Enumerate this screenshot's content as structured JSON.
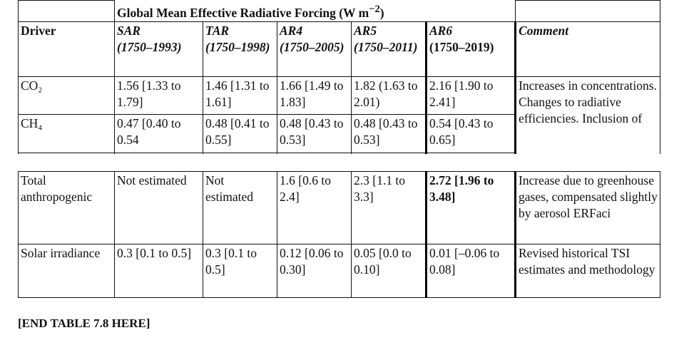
{
  "header": {
    "title": "Global Mean Effective Radiative Forcing (W m",
    "unit_exponent": "−2",
    "title_end": ")"
  },
  "columns": [
    {
      "name": "Driver"
    },
    {
      "name": "SAR",
      "period": "(1750–1993)"
    },
    {
      "name": "TAR",
      "period": "(1750–1998)"
    },
    {
      "name": "AR4",
      "period": "(1750–2005)"
    },
    {
      "name": "AR5",
      "period": "(1750–2011)"
    },
    {
      "name": "AR6",
      "period": "(1750–2019)"
    },
    {
      "name": "Comment"
    }
  ],
  "rows_top": [
    {
      "driver": "CO₂",
      "values": [
        "1.56 [1.33 to 1.79]",
        "1.46 [1.31 to 1.61]",
        "1.66 [1.49 to 1.83]",
        "1.82 (1.63 to 2.01)",
        "2.16 [1.90 to 2.41]"
      ]
    },
    {
      "driver": "CH₄",
      "values": [
        "0.47 [0.40 to 0.54",
        "0.48 [0.41 to 0.55]",
        "0.48 [0.43 to 0.53]",
        "0.48 [0.43 to 0.53]",
        "0.54 [0.43 to 0.65]"
      ]
    }
  ],
  "comment_top": "Increases in concentrations. Changes to radiative efficiencies. Inclusion of",
  "rows_bottom": [
    {
      "driver": "Total anthropogenic",
      "values": [
        "Not estimated",
        "Not estimated",
        "1.6 [0.6 to 2.4]",
        "2.3 [1.1 to 3.3]",
        "2.72 [1.96 to 3.48]"
      ],
      "comment": "Increase due to greenhouse gases, compensated slightly by aerosol ERFaci"
    },
    {
      "driver": "Solar irradiance",
      "values": [
        "0.3 [0.1 to 0.5]",
        "0.3 [0.1 to 0.5]",
        "0.12 [0.06 to 0.30]",
        "0.05 [0.0 to 0.10]",
        "0.01 [–0.06 to 0.08]"
      ],
      "comment": "Revised historical TSI estimates and methodology"
    }
  ],
  "footer": "[END TABLE 7.8 HERE]"
}
